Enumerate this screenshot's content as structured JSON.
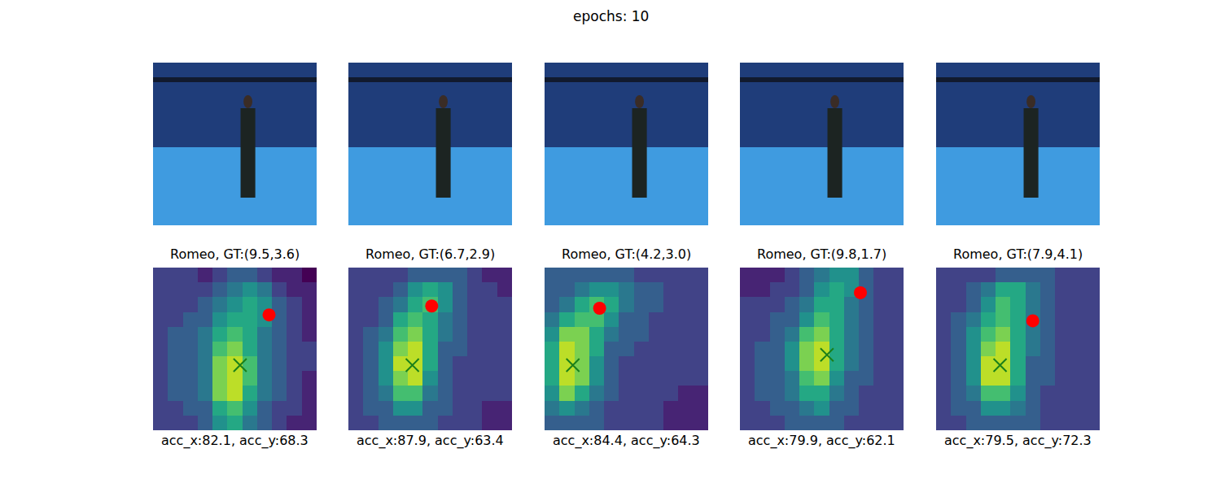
{
  "title": "epochs: 10",
  "chart_data": [
    {
      "type": "heatmap",
      "title": "Romeo, GT:(9.5,3.6)",
      "caption": "acc_x:82.1, acc_y:68.3",
      "xlim": [
        0,
        11
      ],
      "ylim": [
        11,
        0
      ],
      "zlim": [
        0,
        10
      ],
      "tick_labels": false,
      "cross": [
        5.85,
        6.6
      ],
      "dot": [
        7.8,
        3.2
      ],
      "cells": [
        [
          2,
          2,
          2,
          1,
          2,
          3,
          3,
          2,
          1,
          1,
          0
        ],
        [
          2,
          2,
          2,
          2,
          3,
          4,
          5,
          4,
          2,
          1,
          1
        ],
        [
          2,
          2,
          2,
          3,
          4,
          5,
          6,
          5,
          3,
          2,
          1
        ],
        [
          2,
          2,
          3,
          3,
          5,
          6,
          6,
          5,
          3,
          2,
          1
        ],
        [
          2,
          3,
          3,
          4,
          6,
          7,
          6,
          4,
          3,
          2,
          1
        ],
        [
          2,
          3,
          3,
          4,
          7,
          8,
          6,
          4,
          3,
          2,
          2
        ],
        [
          2,
          3,
          3,
          4,
          8,
          9,
          7,
          4,
          3,
          2,
          2
        ],
        [
          2,
          3,
          3,
          4,
          8,
          9,
          7,
          4,
          3,
          2,
          1
        ],
        [
          2,
          3,
          3,
          4,
          8,
          9,
          6,
          4,
          3,
          2,
          1
        ],
        [
          2,
          2,
          3,
          3,
          6,
          7,
          5,
          3,
          2,
          2,
          1
        ],
        [
          2,
          2,
          2,
          3,
          5,
          6,
          4,
          3,
          2,
          1,
          1
        ]
      ]
    },
    {
      "type": "heatmap",
      "title": "Romeo, GT:(6.7,2.9)",
      "caption": "acc_x:87.9, acc_y:63.4",
      "xlim": [
        0,
        11
      ],
      "ylim": [
        11,
        0
      ],
      "zlim": [
        0,
        10
      ],
      "tick_labels": false,
      "cross": [
        4.3,
        6.6
      ],
      "dot": [
        5.6,
        2.6
      ],
      "cells": [
        [
          2,
          2,
          2,
          2,
          3,
          3,
          3,
          3,
          2,
          1,
          1
        ],
        [
          2,
          2,
          2,
          3,
          5,
          6,
          5,
          3,
          2,
          2,
          1
        ],
        [
          2,
          2,
          3,
          4,
          6,
          7,
          5,
          3,
          2,
          2,
          2
        ],
        [
          2,
          2,
          3,
          6,
          7,
          6,
          4,
          3,
          2,
          2,
          2
        ],
        [
          2,
          3,
          4,
          7,
          8,
          6,
          4,
          3,
          2,
          2,
          2
        ],
        [
          2,
          3,
          5,
          8,
          9,
          6,
          3,
          3,
          2,
          2,
          2
        ],
        [
          2,
          3,
          5,
          9,
          9,
          6,
          3,
          2,
          2,
          2,
          2
        ],
        [
          2,
          3,
          5,
          8,
          9,
          5,
          3,
          2,
          2,
          2,
          2
        ],
        [
          2,
          3,
          4,
          7,
          7,
          4,
          3,
          2,
          2,
          2,
          2
        ],
        [
          2,
          3,
          3,
          5,
          5,
          3,
          3,
          2,
          2,
          1,
          1
        ],
        [
          2,
          2,
          3,
          3,
          3,
          3,
          2,
          2,
          2,
          1,
          1
        ]
      ]
    },
    {
      "type": "heatmap",
      "title": "Romeo, GT:(4.2,3.0)",
      "caption": "acc_x:84.4, acc_y:64.3",
      "xlim": [
        0,
        11
      ],
      "ylim": [
        11,
        0
      ],
      "zlim": [
        0,
        10
      ],
      "tick_labels": false,
      "cross": [
        1.9,
        6.6
      ],
      "dot": [
        3.7,
        2.75
      ],
      "cells": [
        [
          3,
          3,
          3,
          3,
          3,
          3,
          2,
          2,
          2,
          2,
          2
        ],
        [
          3,
          3,
          4,
          5,
          5,
          4,
          3,
          3,
          2,
          2,
          2
        ],
        [
          3,
          4,
          6,
          7,
          6,
          4,
          3,
          3,
          2,
          2,
          2
        ],
        [
          4,
          6,
          7,
          7,
          5,
          3,
          3,
          2,
          2,
          2,
          2
        ],
        [
          5,
          8,
          8,
          6,
          4,
          3,
          3,
          2,
          2,
          2,
          2
        ],
        [
          6,
          9,
          8,
          6,
          3,
          3,
          2,
          2,
          2,
          2,
          2
        ],
        [
          6,
          9,
          8,
          5,
          3,
          2,
          2,
          2,
          2,
          2,
          2
        ],
        [
          6,
          9,
          8,
          5,
          3,
          2,
          2,
          2,
          2,
          2,
          2
        ],
        [
          5,
          8,
          6,
          4,
          3,
          2,
          2,
          2,
          2,
          1,
          1
        ],
        [
          4,
          5,
          4,
          3,
          2,
          2,
          2,
          2,
          1,
          1,
          1
        ],
        [
          3,
          3,
          3,
          3,
          2,
          2,
          2,
          2,
          1,
          1,
          1
        ]
      ]
    },
    {
      "type": "heatmap",
      "title": "Romeo, GT:(9.8,1.7)",
      "caption": "acc_x:79.9, acc_y:62.1",
      "xlim": [
        0,
        11
      ],
      "ylim": [
        11,
        0
      ],
      "zlim": [
        0,
        10
      ],
      "tick_labels": false,
      "cross": [
        5.85,
        5.9
      ],
      "dot": [
        8.1,
        1.7
      ],
      "cells": [
        [
          1,
          1,
          1,
          2,
          3,
          4,
          5,
          5,
          3,
          2,
          2
        ],
        [
          1,
          1,
          2,
          2,
          3,
          5,
          6,
          5,
          3,
          2,
          2
        ],
        [
          2,
          2,
          2,
          3,
          4,
          6,
          6,
          4,
          3,
          2,
          2
        ],
        [
          2,
          2,
          3,
          3,
          5,
          7,
          6,
          4,
          3,
          2,
          2
        ],
        [
          2,
          2,
          3,
          4,
          7,
          8,
          6,
          4,
          3,
          2,
          2
        ],
        [
          2,
          3,
          3,
          5,
          8,
          9,
          6,
          4,
          3,
          2,
          2
        ],
        [
          2,
          3,
          3,
          5,
          8,
          9,
          6,
          4,
          3,
          2,
          2
        ],
        [
          2,
          3,
          3,
          4,
          7,
          8,
          5,
          3,
          3,
          2,
          2
        ],
        [
          2,
          3,
          3,
          4,
          6,
          6,
          4,
          3,
          2,
          2,
          2
        ],
        [
          2,
          2,
          3,
          3,
          4,
          5,
          3,
          3,
          2,
          2,
          2
        ],
        [
          2,
          2,
          2,
          3,
          3,
          3,
          3,
          2,
          2,
          2,
          2
        ]
      ]
    },
    {
      "type": "heatmap",
      "title": "Romeo, GT:(7.9,4.1)",
      "caption": "acc_x:79.5, acc_y:72.3",
      "xlim": [
        0,
        11
      ],
      "ylim": [
        11,
        0
      ],
      "zlim": [
        0,
        10
      ],
      "tick_labels": false,
      "cross": [
        4.3,
        6.6
      ],
      "dot": [
        6.5,
        3.6
      ],
      "cells": [
        [
          2,
          2,
          2,
          2,
          3,
          3,
          3,
          3,
          2,
          2,
          2
        ],
        [
          2,
          2,
          3,
          4,
          6,
          6,
          4,
          3,
          2,
          2,
          2
        ],
        [
          2,
          2,
          3,
          5,
          7,
          6,
          4,
          3,
          2,
          2,
          2
        ],
        [
          2,
          3,
          4,
          6,
          7,
          6,
          4,
          3,
          2,
          2,
          2
        ],
        [
          2,
          3,
          5,
          7,
          8,
          6,
          4,
          3,
          2,
          2,
          2
        ],
        [
          2,
          3,
          5,
          8,
          9,
          6,
          4,
          3,
          2,
          2,
          2
        ],
        [
          2,
          3,
          5,
          9,
          9,
          6,
          3,
          3,
          2,
          2,
          2
        ],
        [
          2,
          3,
          5,
          9,
          9,
          6,
          3,
          3,
          2,
          2,
          2
        ],
        [
          2,
          3,
          4,
          7,
          7,
          5,
          3,
          2,
          2,
          2,
          2
        ],
        [
          2,
          3,
          3,
          5,
          5,
          4,
          3,
          2,
          2,
          2,
          2
        ],
        [
          2,
          2,
          3,
          3,
          3,
          3,
          3,
          2,
          2,
          2,
          2
        ]
      ]
    }
  ]
}
